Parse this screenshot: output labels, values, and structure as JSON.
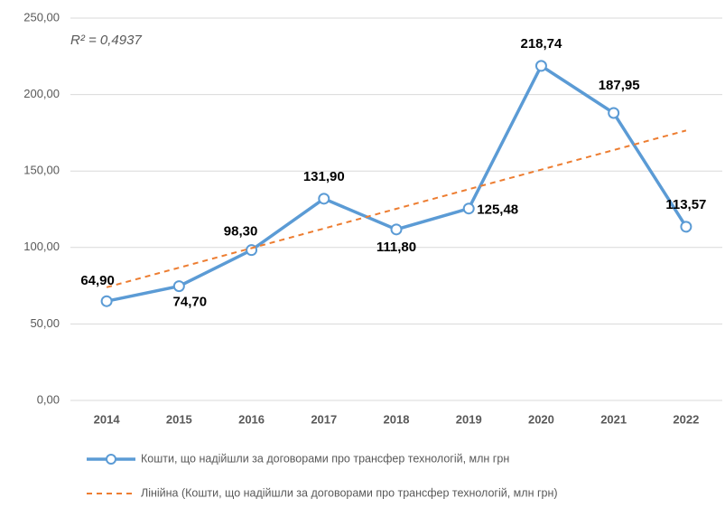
{
  "chart_data": {
    "type": "line",
    "categories": [
      "2014",
      "2015",
      "2016",
      "2017",
      "2018",
      "2019",
      "2020",
      "2021",
      "2022"
    ],
    "series": [
      {
        "name": "Кошти, що надійшли за договорами про трансфер технологій, млн грн",
        "color": "#5b9bd5",
        "values": [
          64.9,
          74.7,
          98.3,
          131.9,
          111.8,
          125.48,
          218.74,
          187.95,
          113.57
        ],
        "value_labels": [
          "64,90",
          "74,70",
          "98,30",
          "131,90",
          "111,80",
          "125,48",
          "218,74",
          "187,95",
          "113,57"
        ]
      },
      {
        "name": "Лінійна (Кошти, що надійшли за договорами про трансфер технологій, млн грн)",
        "color": "#ed7d31",
        "dashed": true,
        "values": [
          74.0,
          86.8,
          99.6,
          112.4,
          125.3,
          138.1,
          150.9,
          163.7,
          176.5
        ]
      }
    ],
    "annotation": "R² = 0,4937",
    "ylim": [
      0,
      250
    ],
    "yticks": [
      {
        "value": 0,
        "label": "0,00"
      },
      {
        "value": 50,
        "label": "50,00"
      },
      {
        "value": 100,
        "label": "100,00"
      },
      {
        "value": 150,
        "label": "150,00"
      },
      {
        "value": 200,
        "label": "200,00"
      },
      {
        "value": 250,
        "label": "250,00"
      }
    ],
    "grid": true
  }
}
